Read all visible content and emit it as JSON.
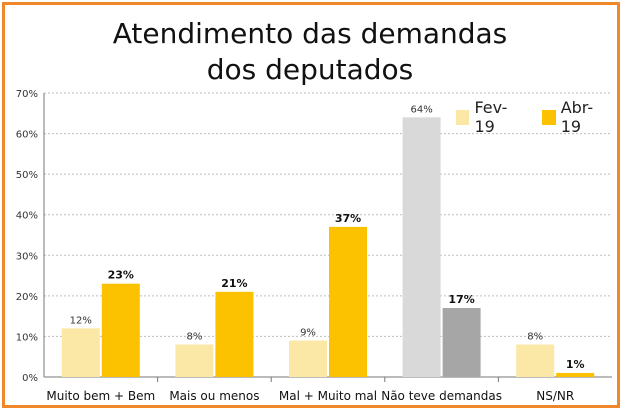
{
  "chart_data": {
    "type": "bar",
    "title": [
      "Atendimento das demandas",
      "dos deputados"
    ],
    "categories": [
      "Muito bem + Bem",
      "Mais ou menos",
      "Mal + Muito mal",
      "Não teve demandas",
      "NS/NR"
    ],
    "series": [
      {
        "name": "Fev-19",
        "values": [
          12,
          8,
          9,
          64,
          8
        ],
        "labels": [
          "12%",
          "8%",
          "9%",
          "64%",
          "8%"
        ]
      },
      {
        "name": "Abr-19",
        "values": [
          23,
          21,
          37,
          17,
          1
        ],
        "labels": [
          "23%",
          "21%",
          "37%",
          "17%",
          "1%"
        ]
      }
    ],
    "y_ticks": [
      "0%",
      "10%",
      "20%",
      "30%",
      "40%",
      "50%",
      "60%",
      "70%"
    ],
    "ylim": [
      0,
      70
    ],
    "grid": true,
    "legend": "top-right",
    "colors": {
      "fev": "#fbe8a6",
      "abr": "#fcc200",
      "fev_highlight": "#d9d9d9",
      "abr_highlight": "#a6a6a6",
      "frame": "#f0872a"
    },
    "highlight_category_index": 3
  }
}
